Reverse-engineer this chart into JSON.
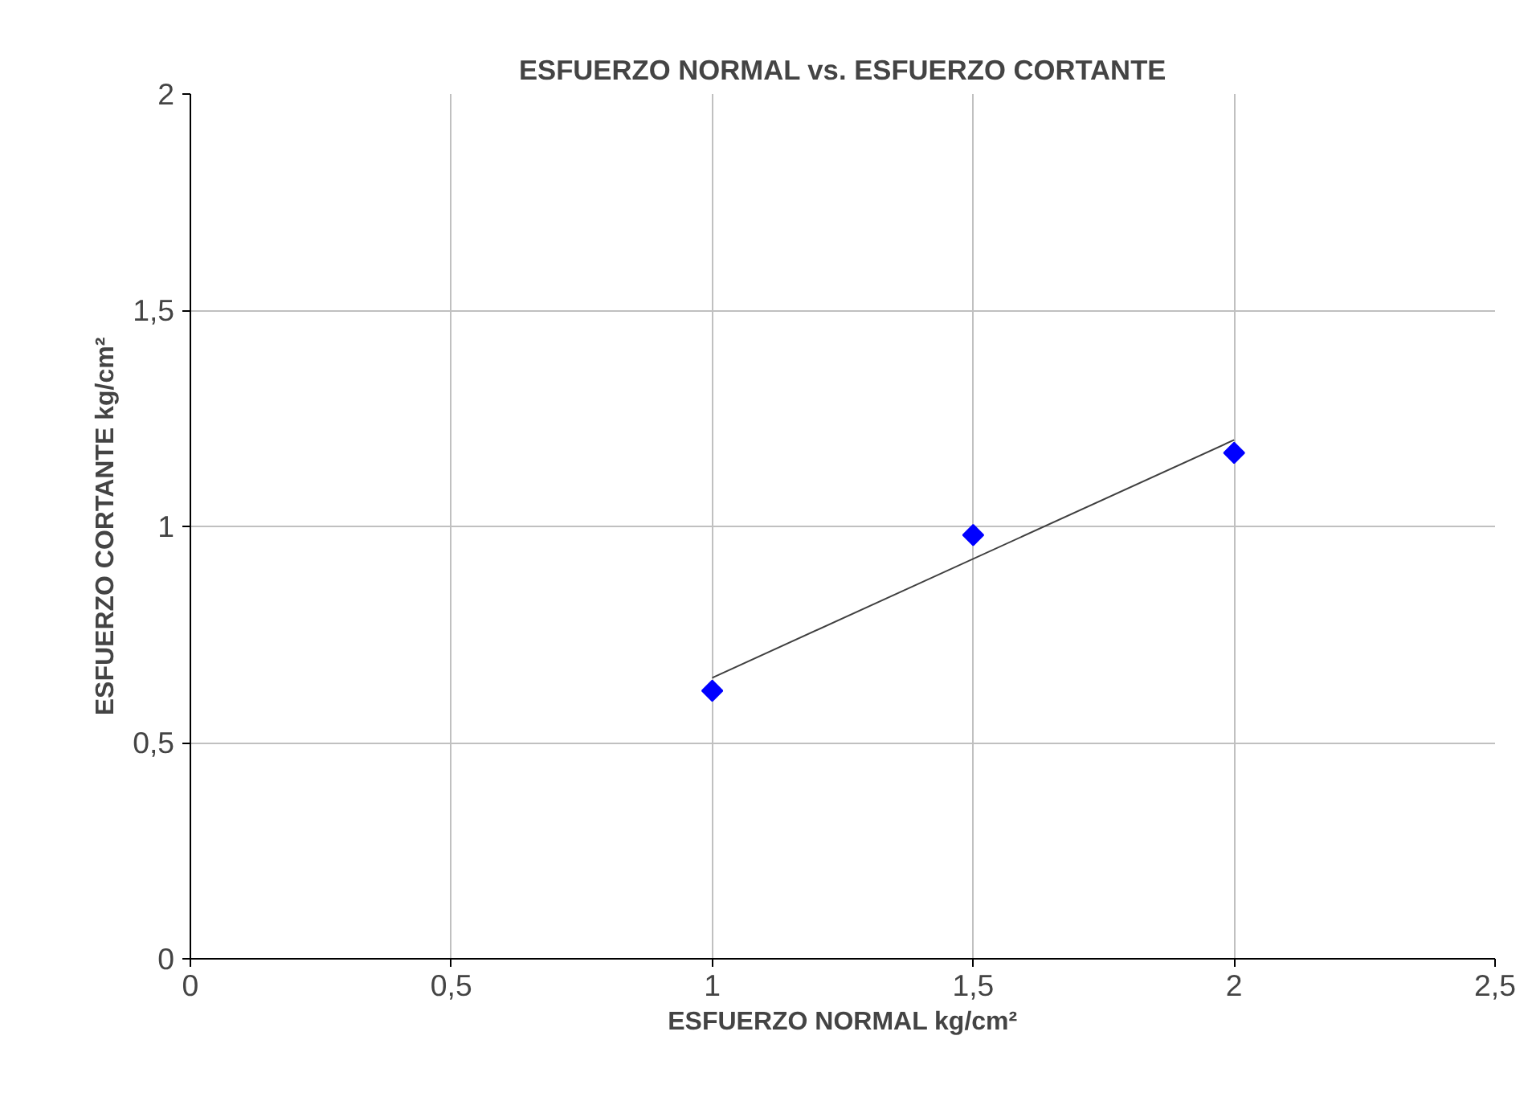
{
  "chart_data": {
    "type": "scatter",
    "title": "ESFUERZO NORMAL vs. ESFUERZO CORTANTE",
    "xlabel": "ESFUERZO NORMAL kg/cm²",
    "ylabel": "ESFUERZO CORTANTE kg/cm²",
    "x": [
      1,
      1.5,
      2
    ],
    "series": [
      {
        "color": "#0000ff",
        "values": [
          0.62,
          0.98,
          1.17
        ],
        "marker": "diamond"
      },
      {
        "type": "line",
        "color": "#404040",
        "x": [
          1,
          2
        ],
        "values": [
          0.65,
          1.2
        ],
        "marker": "none",
        "line_style": "solid"
      }
    ],
    "xlim": [
      0,
      2.5
    ],
    "ylim": [
      0,
      2
    ],
    "xticks": [
      0,
      {
        "value": 0.5,
        "label": "0,5"
      },
      1,
      {
        "value": 1.5,
        "label": "1,5"
      },
      2,
      {
        "value": 2.5,
        "label": "2,5"
      }
    ],
    "yticks": [
      0,
      {
        "value": 0.5,
        "label": "0,5"
      },
      1,
      {
        "value": 1.5,
        "label": "1,5"
      },
      2
    ],
    "grid": true
  }
}
